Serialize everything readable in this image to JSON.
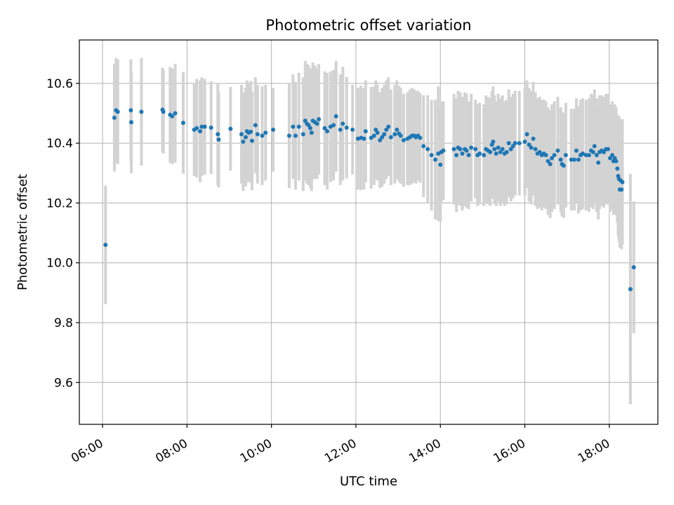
{
  "chart_data": {
    "type": "scatter",
    "title": "Photometric offset variation",
    "xlabel": "UTC time",
    "ylabel": "Photometric offset",
    "x_unit": "hours UTC",
    "xlim": [
      5.45,
      19.15
    ],
    "ylim": [
      9.46,
      10.745
    ],
    "xticks": [
      {
        "value": 6,
        "label": "06:00"
      },
      {
        "value": 8,
        "label": "08:00"
      },
      {
        "value": 10,
        "label": "10:00"
      },
      {
        "value": 12,
        "label": "12:00"
      },
      {
        "value": 14,
        "label": "14:00"
      },
      {
        "value": 16,
        "label": "16:00"
      },
      {
        "value": 18,
        "label": "18:00"
      }
    ],
    "yticks": [
      {
        "value": 9.6,
        "label": "9.6"
      },
      {
        "value": 9.8,
        "label": "9.8"
      },
      {
        "value": 10.0,
        "label": "10.0"
      },
      {
        "value": 10.2,
        "label": "10.2"
      },
      {
        "value": 10.4,
        "label": "10.4"
      },
      {
        "value": 10.6,
        "label": "10.6"
      }
    ],
    "grid": true,
    "colors": {
      "marker": "#1f77b4",
      "errorbar": "#d3d3d3",
      "grid": "#b0b0b0"
    },
    "points": [
      [
        6.07,
        10.06,
        0.198
      ],
      [
        6.28,
        10.485,
        0.18
      ],
      [
        6.32,
        10.51,
        0.175
      ],
      [
        6.36,
        10.505,
        0.175
      ],
      [
        6.67,
        10.51,
        0.17
      ],
      [
        6.68,
        10.47,
        0.17
      ],
      [
        6.92,
        10.505,
        0.18
      ],
      [
        7.42,
        10.512,
        0.14
      ],
      [
        7.44,
        10.505,
        0.14
      ],
      [
        7.6,
        10.495,
        0.16
      ],
      [
        7.65,
        10.49,
        0.16
      ],
      [
        7.72,
        10.5,
        0.165
      ],
      [
        7.91,
        10.468,
        0.17
      ],
      [
        8.17,
        10.445,
        0.155
      ],
      [
        8.23,
        10.45,
        0.165
      ],
      [
        8.31,
        10.44,
        0.17
      ],
      [
        8.35,
        10.455,
        0.165
      ],
      [
        8.42,
        10.455,
        0.16
      ],
      [
        8.57,
        10.452,
        0.155
      ],
      [
        8.73,
        10.43,
        0.17
      ],
      [
        8.75,
        10.412,
        0.16
      ],
      [
        9.03,
        10.448,
        0.14
      ],
      [
        9.29,
        10.43,
        0.165
      ],
      [
        9.33,
        10.405,
        0.165
      ],
      [
        9.39,
        10.42,
        0.165
      ],
      [
        9.42,
        10.44,
        0.17
      ],
      [
        9.46,
        10.435,
        0.165
      ],
      [
        9.51,
        10.438,
        0.17
      ],
      [
        9.54,
        10.408,
        0.165
      ],
      [
        9.62,
        10.46,
        0.16
      ],
      [
        9.67,
        10.43,
        0.165
      ],
      [
        9.78,
        10.425,
        0.165
      ],
      [
        9.86,
        10.435,
        0.16
      ],
      [
        10.04,
        10.445,
        0.14
      ],
      [
        10.42,
        10.425,
        0.175
      ],
      [
        10.51,
        10.455,
        0.175
      ],
      [
        10.57,
        10.425,
        0.18
      ],
      [
        10.65,
        10.455,
        0.18
      ],
      [
        10.75,
        10.43,
        0.19
      ],
      [
        10.8,
        10.475,
        0.2
      ],
      [
        10.84,
        10.465,
        0.2
      ],
      [
        10.88,
        10.46,
        0.2
      ],
      [
        10.92,
        10.45,
        0.2
      ],
      [
        10.95,
        10.435,
        0.195
      ],
      [
        10.98,
        10.475,
        0.195
      ],
      [
        11.03,
        10.47,
        0.19
      ],
      [
        11.08,
        10.465,
        0.185
      ],
      [
        11.12,
        10.48,
        0.185
      ],
      [
        11.26,
        10.45,
        0.19
      ],
      [
        11.32,
        10.44,
        0.195
      ],
      [
        11.4,
        10.455,
        0.185
      ],
      [
        11.47,
        10.46,
        0.185
      ],
      [
        11.53,
        10.49,
        0.185
      ],
      [
        11.63,
        10.445,
        0.185
      ],
      [
        11.69,
        10.465,
        0.19
      ],
      [
        11.78,
        10.452,
        0.17
      ],
      [
        11.92,
        10.445,
        0.15
      ],
      [
        12.05,
        10.415,
        0.17
      ],
      [
        12.12,
        10.418,
        0.175
      ],
      [
        12.19,
        10.415,
        0.17
      ],
      [
        12.23,
        10.44,
        0.17
      ],
      [
        12.36,
        10.418,
        0.17
      ],
      [
        12.43,
        10.425,
        0.165
      ],
      [
        12.47,
        10.445,
        0.165
      ],
      [
        12.51,
        10.435,
        0.16
      ],
      [
        12.57,
        10.41,
        0.16
      ],
      [
        12.62,
        10.42,
        0.165
      ],
      [
        12.67,
        10.43,
        0.165
      ],
      [
        12.72,
        10.445,
        0.165
      ],
      [
        12.77,
        10.455,
        0.165
      ],
      [
        12.83,
        10.42,
        0.16
      ],
      [
        12.92,
        10.43,
        0.165
      ],
      [
        12.97,
        10.445,
        0.165
      ],
      [
        13.02,
        10.432,
        0.16
      ],
      [
        13.06,
        10.425,
        0.16
      ],
      [
        13.13,
        10.41,
        0.155
      ],
      [
        13.22,
        10.415,
        0.155
      ],
      [
        13.28,
        10.42,
        0.16
      ],
      [
        13.33,
        10.425,
        0.16
      ],
      [
        13.38,
        10.425,
        0.155
      ],
      [
        13.42,
        10.42,
        0.155
      ],
      [
        13.47,
        10.425,
        0.15
      ],
      [
        13.52,
        10.418,
        0.15
      ],
      [
        13.6,
        10.39,
        0.17
      ],
      [
        13.7,
        10.38,
        0.18
      ],
      [
        13.79,
        10.36,
        0.185
      ],
      [
        13.88,
        10.345,
        0.2
      ],
      [
        13.95,
        10.365,
        0.225
      ],
      [
        14.0,
        10.328,
        0.19
      ],
      [
        14.02,
        10.37,
        0.17
      ],
      [
        14.07,
        10.375,
        0.165
      ],
      [
        14.32,
        10.38,
        0.185
      ],
      [
        14.38,
        10.36,
        0.19
      ],
      [
        14.42,
        10.385,
        0.19
      ],
      [
        14.47,
        10.38,
        0.19
      ],
      [
        14.52,
        10.365,
        0.19
      ],
      [
        14.58,
        10.38,
        0.19
      ],
      [
        14.62,
        10.375,
        0.19
      ],
      [
        14.67,
        10.36,
        0.18
      ],
      [
        14.73,
        10.385,
        0.18
      ],
      [
        14.83,
        10.38,
        0.165
      ],
      [
        14.88,
        10.36,
        0.17
      ],
      [
        14.93,
        10.365,
        0.17
      ],
      [
        15.03,
        10.36,
        0.17
      ],
      [
        15.08,
        10.38,
        0.18
      ],
      [
        15.13,
        10.375,
        0.18
      ],
      [
        15.18,
        10.37,
        0.18
      ],
      [
        15.22,
        10.395,
        0.18
      ],
      [
        15.25,
        10.405,
        0.185
      ],
      [
        15.28,
        10.38,
        0.18
      ],
      [
        15.32,
        10.365,
        0.175
      ],
      [
        15.37,
        10.385,
        0.18
      ],
      [
        15.42,
        10.37,
        0.18
      ],
      [
        15.47,
        10.38,
        0.18
      ],
      [
        15.52,
        10.365,
        0.175
      ],
      [
        15.57,
        10.37,
        0.175
      ],
      [
        15.62,
        10.4,
        0.18
      ],
      [
        15.67,
        10.38,
        0.175
      ],
      [
        15.72,
        10.39,
        0.175
      ],
      [
        15.77,
        10.4,
        0.175
      ],
      [
        15.87,
        10.4,
        0.175
      ],
      [
        16.0,
        10.405,
        0.18
      ],
      [
        16.05,
        10.43,
        0.18
      ],
      [
        16.1,
        10.395,
        0.19
      ],
      [
        16.15,
        10.385,
        0.19
      ],
      [
        16.2,
        10.415,
        0.19
      ],
      [
        16.25,
        10.38,
        0.19
      ],
      [
        16.3,
        10.365,
        0.185
      ],
      [
        16.35,
        10.37,
        0.185
      ],
      [
        16.4,
        10.36,
        0.185
      ],
      [
        16.45,
        10.365,
        0.18
      ],
      [
        16.5,
        10.36,
        0.18
      ],
      [
        16.55,
        10.34,
        0.18
      ],
      [
        16.6,
        10.33,
        0.18
      ],
      [
        16.64,
        10.35,
        0.18
      ],
      [
        16.7,
        10.36,
        0.18
      ],
      [
        16.78,
        10.375,
        0.18
      ],
      [
        16.85,
        10.345,
        0.175
      ],
      [
        16.88,
        10.33,
        0.175
      ],
      [
        16.92,
        10.325,
        0.175
      ],
      [
        16.97,
        10.36,
        0.175
      ],
      [
        17.1,
        10.345,
        0.17
      ],
      [
        17.17,
        10.345,
        0.17
      ],
      [
        17.22,
        10.375,
        0.175
      ],
      [
        17.27,
        10.345,
        0.18
      ],
      [
        17.32,
        10.36,
        0.185
      ],
      [
        17.37,
        10.365,
        0.185
      ],
      [
        17.45,
        10.36,
        0.185
      ],
      [
        17.52,
        10.36,
        0.19
      ],
      [
        17.57,
        10.375,
        0.19
      ],
      [
        17.62,
        10.37,
        0.19
      ],
      [
        17.65,
        10.39,
        0.19
      ],
      [
        17.7,
        10.36,
        0.19
      ],
      [
        17.74,
        10.335,
        0.19
      ],
      [
        17.77,
        10.37,
        0.19
      ],
      [
        17.82,
        10.375,
        0.185
      ],
      [
        17.87,
        10.37,
        0.185
      ],
      [
        17.92,
        10.38,
        0.185
      ],
      [
        17.97,
        10.38,
        0.185
      ],
      [
        18.02,
        10.35,
        0.18
      ],
      [
        18.07,
        10.36,
        0.18
      ],
      [
        18.1,
        10.34,
        0.18
      ],
      [
        18.13,
        10.35,
        0.18
      ],
      [
        18.16,
        10.34,
        0.18
      ],
      [
        18.19,
        10.315,
        0.18
      ],
      [
        18.21,
        10.29,
        0.2
      ],
      [
        18.23,
        10.28,
        0.21
      ],
      [
        18.25,
        10.245,
        0.195
      ],
      [
        18.27,
        10.275,
        0.205
      ],
      [
        18.29,
        10.245,
        0.2
      ],
      [
        18.31,
        10.27,
        0.21
      ],
      [
        18.5,
        9.912,
        0.385
      ],
      [
        18.58,
        9.985,
        0.22
      ]
    ]
  }
}
